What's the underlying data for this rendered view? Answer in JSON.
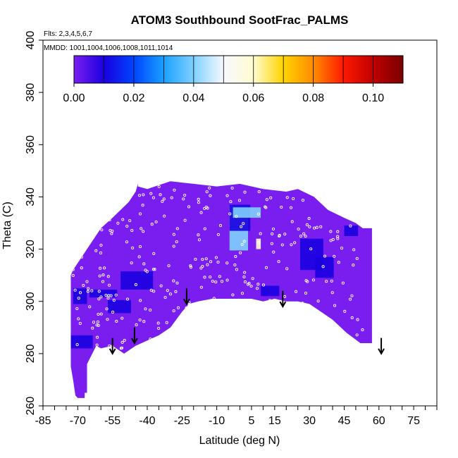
{
  "chart_data": {
    "type": "heatmap",
    "title": "ATOM3 Southbound SootFrac_PALMS",
    "flights_note": "Flts: 2,3,4,5,6,7",
    "date_note": "MMDD: 1001,1004,1006,1008,1011,1014",
    "xlabel": "Latitude (deg N)",
    "ylabel": "Theta (C)",
    "xlim": [
      -85,
      85
    ],
    "ylim": [
      260,
      400
    ],
    "x_minor_ticks": [
      -85,
      -80,
      -75,
      -70,
      -65,
      -60,
      -55,
      -50,
      -45,
      -40,
      -35,
      -30,
      -25,
      -20,
      -15,
      -10,
      -5,
      0,
      5,
      10,
      15,
      20,
      25,
      30,
      35,
      40,
      45,
      50,
      55,
      60,
      65,
      70,
      75,
      80,
      85
    ],
    "x_tick_labels": [
      "-85",
      "-70",
      "-55",
      "-40",
      "-25",
      "-10",
      "5",
      "15",
      "30",
      "45",
      "60",
      "75"
    ],
    "x_tick_values": [
      -85,
      -70,
      -55,
      -40,
      -25,
      -10,
      5,
      15,
      30,
      45,
      60,
      75
    ],
    "y_tick_values": [
      260,
      280,
      300,
      320,
      340,
      360,
      380,
      400
    ],
    "y_tick_labels": [
      "260",
      "280",
      "300",
      "320",
      "340",
      "360",
      "380",
      "400"
    ],
    "colorbar": {
      "min": 0.0,
      "max": 0.11,
      "tick_values": [
        0.0,
        0.02,
        0.04,
        0.06,
        0.08,
        0.1
      ],
      "tick_labels": [
        "0.00",
        "0.02",
        "0.04",
        "0.06",
        "0.08",
        "0.10"
      ],
      "bin_edges": [
        0.0,
        0.01,
        0.02,
        0.03,
        0.04,
        0.05,
        0.06,
        0.07,
        0.08,
        0.09,
        0.1,
        0.11
      ],
      "colors": [
        "#7a1ef0",
        "#1a00e0",
        "#0044ff",
        "#1aa0ff",
        "#80d0ff",
        "#f8faff",
        "#fffbd0",
        "#ffd400",
        "#ff8c00",
        "#ff1a00",
        "#c00000",
        "#7a0000"
      ]
    },
    "background_value": 0.0,
    "field_outline": [
      [
        -72.5,
        311
      ],
      [
        -72,
        312
      ],
      [
        -60,
        328
      ],
      [
        -55,
        332
      ],
      [
        -48,
        338
      ],
      [
        -45,
        342
      ],
      [
        -44,
        345
      ],
      [
        -44,
        344
      ],
      [
        -40,
        343
      ],
      [
        -30,
        346
      ],
      [
        -20,
        345
      ],
      [
        -10,
        344
      ],
      [
        0,
        345
      ],
      [
        10,
        343
      ],
      [
        20,
        342
      ],
      [
        25,
        343
      ],
      [
        32,
        340
      ],
      [
        38,
        335
      ],
      [
        45,
        332
      ],
      [
        50,
        330
      ],
      [
        53,
        328
      ],
      [
        57,
        328
      ],
      [
        57,
        284
      ],
      [
        52,
        284
      ],
      [
        46,
        288
      ],
      [
        40,
        293
      ],
      [
        35,
        296
      ],
      [
        30,
        299
      ],
      [
        25,
        300
      ],
      [
        20,
        300
      ],
      [
        15,
        301
      ],
      [
        10,
        300
      ],
      [
        5,
        301
      ],
      [
        0,
        301
      ],
      [
        -5,
        301
      ],
      [
        -12,
        301
      ],
      [
        -18,
        300
      ],
      [
        -22,
        299
      ],
      [
        -25,
        296
      ],
      [
        -30,
        290
      ],
      [
        -35,
        287
      ],
      [
        -45,
        283
      ],
      [
        -50,
        280
      ],
      [
        -55,
        283
      ],
      [
        -60,
        282
      ],
      [
        -62,
        283
      ],
      [
        -66,
        276
      ],
      [
        -66,
        265
      ],
      [
        -67,
        265
      ],
      [
        -67,
        263
      ],
      [
        -70,
        263
      ],
      [
        -71,
        264
      ],
      [
        -72,
        270
      ],
      [
        -73,
        275
      ],
      [
        -73,
        290
      ],
      [
        -73,
        310
      ]
    ],
    "features": [
      {
        "lat": -0.5,
        "theta": 328,
        "value": 0.04,
        "w": 8,
        "h": 17
      },
      {
        "lat": 0,
        "theta": 332,
        "value": 0.01,
        "w": 9,
        "h": 10
      },
      {
        "lat": 8,
        "theta": 322,
        "value": 0.06,
        "w": 2,
        "h": 4
      },
      {
        "lat": 3,
        "theta": 334,
        "value": 0.04,
        "w": 12,
        "h": 4
      },
      {
        "lat": -68.5,
        "theta": 284.5,
        "value": 0.015,
        "w": 10,
        "h": 5
      },
      {
        "lat": -59,
        "theta": 303,
        "value": 0.015,
        "w": 12,
        "h": 3
      },
      {
        "lat": -52,
        "theta": 298,
        "value": 0.01,
        "w": 10,
        "h": 5
      },
      {
        "lat": -44.5,
        "theta": 308,
        "value": 0.01,
        "w": 14,
        "h": 7
      },
      {
        "lat": 31,
        "theta": 318,
        "value": 0.01,
        "w": 10,
        "h": 12
      },
      {
        "lat": 36.5,
        "theta": 313,
        "value": 0.01,
        "w": 8,
        "h": 8
      },
      {
        "lat": 48,
        "theta": 327,
        "value": 0.01,
        "w": 6,
        "h": 4
      },
      {
        "lat": 13,
        "theta": 304,
        "value": 0.01,
        "w": 8,
        "h": 4
      },
      {
        "lat": -69,
        "theta": 302,
        "value": 0.01,
        "w": 6,
        "h": 6
      }
    ],
    "flight_arrows": [
      {
        "lat": -55,
        "theta_top": 286,
        "theta_bottom": 280
      },
      {
        "lat": -45.5,
        "theta_top": 290,
        "theta_bottom": 284
      },
      {
        "lat": -23,
        "theta_top": 305,
        "theta_bottom": 299
      },
      {
        "lat": 18.5,
        "theta_top": 304,
        "theta_bottom": 298
      },
      {
        "lat": 61,
        "theta_top": 286,
        "theta_bottom": 280
      }
    ],
    "obs_points_color": "#ffffff"
  }
}
